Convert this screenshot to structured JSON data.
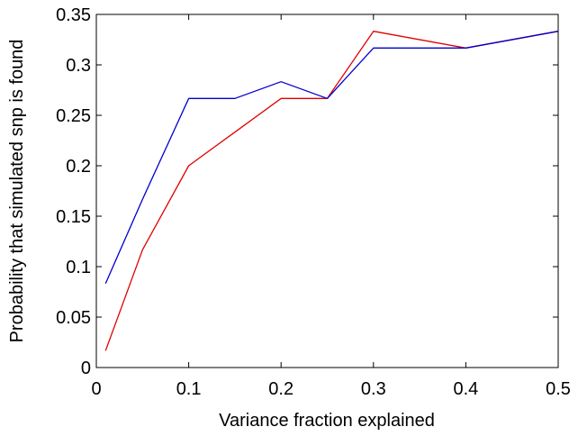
{
  "chart_data": {
    "type": "line",
    "title": "",
    "xlabel": "Variance fraction explained",
    "ylabel": "Probability that simulated snp is found",
    "xlim": [
      0,
      0.5
    ],
    "ylim": [
      0,
      0.35
    ],
    "xticks": [
      0,
      0.1,
      0.2,
      0.3,
      0.4,
      0.5
    ],
    "xtick_labels": [
      "0",
      "0.1",
      "0.2",
      "0.3",
      "0.4",
      "0.5"
    ],
    "yticks": [
      0,
      0.05,
      0.1,
      0.15,
      0.2,
      0.25,
      0.3,
      0.35
    ],
    "ytick_labels": [
      "0",
      "0.05",
      "0.1",
      "0.15",
      "0.2",
      "0.25",
      "0.3",
      "0.35"
    ],
    "grid": false,
    "legend": "none",
    "series": [
      {
        "color": "#e00000",
        "x": [
          0.01,
          0.05,
          0.1,
          0.15,
          0.2,
          0.25,
          0.3,
          0.4,
          0.5
        ],
        "y": [
          0.0167,
          0.1167,
          0.2,
          0.2333,
          0.2667,
          0.2667,
          0.3333,
          0.3167,
          0.3333
        ]
      },
      {
        "color": "#0000cc",
        "x": [
          0.01,
          0.05,
          0.1,
          0.15,
          0.2,
          0.25,
          0.3,
          0.4,
          0.5
        ],
        "y": [
          0.0833,
          0.1667,
          0.2667,
          0.2667,
          0.2833,
          0.2667,
          0.3167,
          0.3167,
          0.3333
        ]
      }
    ]
  }
}
